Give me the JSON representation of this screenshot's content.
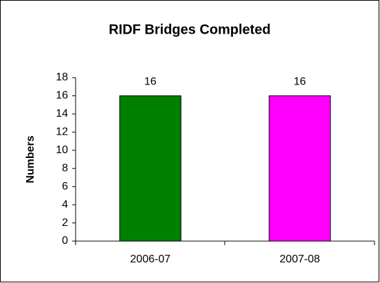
{
  "chart_data": {
    "type": "bar",
    "title": "RIDF Bridges Completed",
    "y_label": "Numbers",
    "categories": [
      "2006-07",
      "2007-08"
    ],
    "values": [
      16,
      16
    ],
    "colors": [
      "#008000",
      "#ff00ff"
    ],
    "ylim": [
      0,
      18
    ],
    "yticks": [
      0,
      2,
      4,
      6,
      8,
      10,
      12,
      14,
      16,
      18
    ],
    "grid": false
  }
}
